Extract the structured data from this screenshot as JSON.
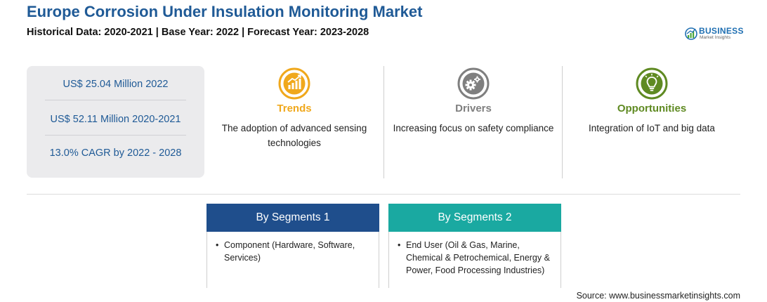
{
  "header": {
    "title": "Europe Corrosion Under Insulation Monitoring Market",
    "subtitle": "Historical Data: 2020-2021 | Base Year: 2022 | Forecast Year: 2023-2028"
  },
  "logo": {
    "word": "BUSINESS",
    "tagline": "Market Insights"
  },
  "stats": [
    "US$ 25.04 Million 2022",
    "US$ 52.11 Million 2020-2021",
    "13.0% CAGR by 2022 - 2028"
  ],
  "columns": [
    {
      "heading": "Trends",
      "text": "The adoption of advanced sensing technologies",
      "icon": "trend-chart-icon",
      "color": "#f0a81c"
    },
    {
      "heading": "Drivers",
      "text": "Increasing focus on safety compliance",
      "icon": "gears-icon",
      "color": "#7f7f7f"
    },
    {
      "heading": "Opportunities",
      "text": "Integration of IoT and big data",
      "icon": "lightbulb-icon",
      "color": "#5f8a22"
    }
  ],
  "segments": [
    {
      "title": "By Segments 1",
      "items": [
        "Component (Hardware, Software, Services)"
      ],
      "color": "#1f4e8c"
    },
    {
      "title": "By Segments 2",
      "items": [
        "End User (Oil & Gas, Marine, Chemical & Petrochemical, Energy & Power, Food Processing Industries)"
      ],
      "color": "#1aa9a1"
    }
  ],
  "bullet": "•",
  "source": "Source: www.businessmarketinsights.com",
  "colors": {
    "title": "#1f5a96",
    "panel": "#ebebed",
    "accent": "#1f6fb2"
  }
}
